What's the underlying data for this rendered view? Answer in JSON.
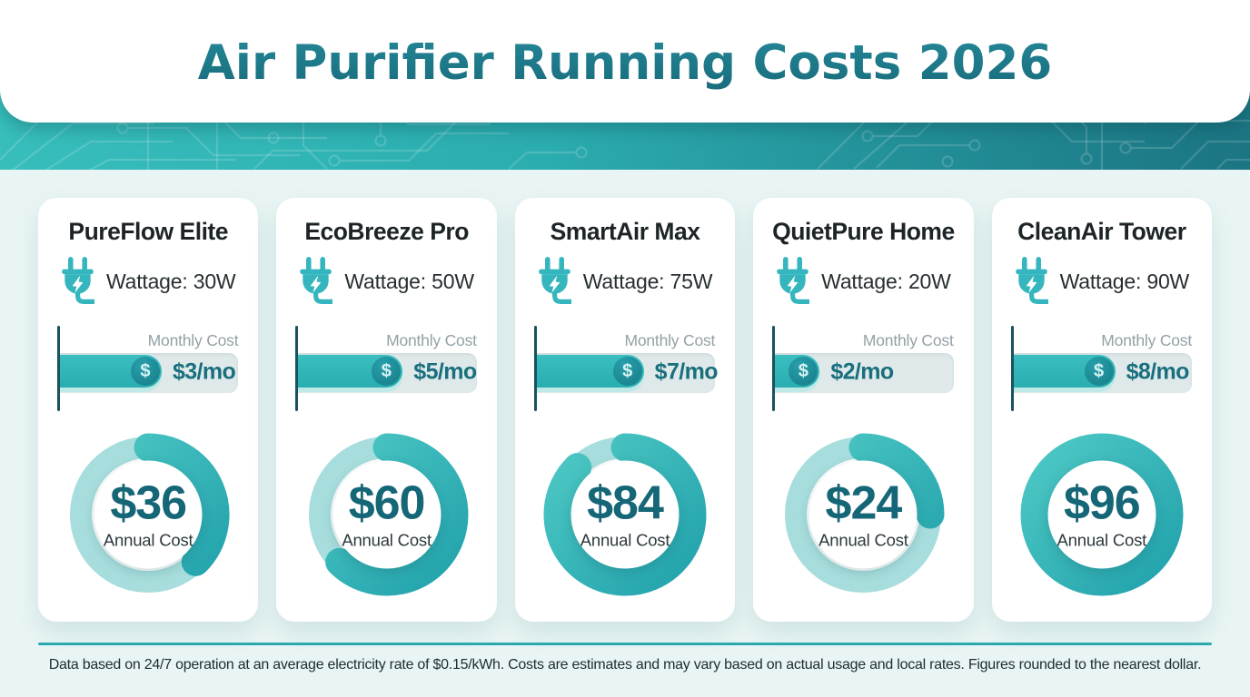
{
  "header": {
    "title": "Air Purifier Running Costs 2026"
  },
  "labels": {
    "monthly_cost": "Monthly Cost",
    "annual_cost": "Annual Cost",
    "coin_symbol": "$"
  },
  "footer": {
    "note": "Data based on 24/7 operation at an average electricity rate of $0.15/kWh. Costs are estimates and may vary based on actual usage and local rates. Figures rounded to the nearest dollar."
  },
  "colors": {
    "page_background": "#e9f5f4",
    "band_gradient_left": "#38bfbc",
    "band_gradient_right": "#1b7482",
    "title_teal": "#17687a",
    "card_background": "#ffffff",
    "bar_track": "#dfe9ea",
    "bar_fill": "#2eb7b9",
    "coin": "#1b8692",
    "value_teal": "#196f7d",
    "donut_track": "#a7dddc",
    "donut_arc_start": "#4cc7c4",
    "donut_arc_end": "#23a3ac",
    "divider": "#2ba9ae"
  },
  "chart_data": {
    "type": "bar",
    "title": "Air Purifier Running Costs 2026",
    "unit_monthly": "USD per month",
    "unit_annual": "USD per year",
    "electricity_rate": "$0.15/kWh",
    "donut_max_annual_usd": 96,
    "categories": [
      "PureFlow Elite",
      "EcoBreeze Pro",
      "SmartAir Max",
      "QuietPure Home",
      "CleanAir Tower"
    ],
    "series": [
      {
        "name": "Wattage (W)",
        "values": [
          30,
          50,
          75,
          20,
          90
        ]
      },
      {
        "name": "Monthly Cost (USD)",
        "values": [
          3,
          5,
          7,
          2,
          8
        ]
      },
      {
        "name": "Annual Cost (USD)",
        "values": [
          36,
          60,
          84,
          24,
          96
        ]
      }
    ],
    "products": [
      {
        "name": "PureFlow Elite",
        "wattage_label": "Wattage: 30W",
        "wattage_w": 30,
        "monthly_label": "$3/mo",
        "monthly_usd": 3,
        "annual_label": "$36",
        "annual_usd": 36,
        "bar_fill_pct": 57,
        "donut_pct": 37.5
      },
      {
        "name": "EcoBreeze Pro",
        "wattage_label": "Wattage: 50W",
        "wattage_w": 50,
        "monthly_label": "$5/mo",
        "monthly_usd": 5,
        "annual_label": "$60",
        "annual_usd": 60,
        "bar_fill_pct": 58.5,
        "donut_pct": 62.5
      },
      {
        "name": "SmartAir Max",
        "wattage_label": "Wattage: 75W",
        "wattage_w": 75,
        "monthly_label": "$7/mo",
        "monthly_usd": 7,
        "annual_label": "$84",
        "annual_usd": 84,
        "bar_fill_pct": 60,
        "donut_pct": 87.5
      },
      {
        "name": "QuietPure Home",
        "wattage_label": "Wattage: 20W",
        "wattage_w": 20,
        "monthly_label": "$2/mo",
        "monthly_usd": 2,
        "annual_label": "$24",
        "annual_usd": 24,
        "bar_fill_pct": 25,
        "donut_pct": 25
      },
      {
        "name": "CleanAir Tower",
        "wattage_label": "Wattage: 90W",
        "wattage_w": 90,
        "monthly_label": "$8/mo",
        "monthly_usd": 8,
        "annual_label": "$96",
        "annual_usd": 96,
        "bar_fill_pct": 57,
        "donut_pct": 100
      }
    ]
  }
}
